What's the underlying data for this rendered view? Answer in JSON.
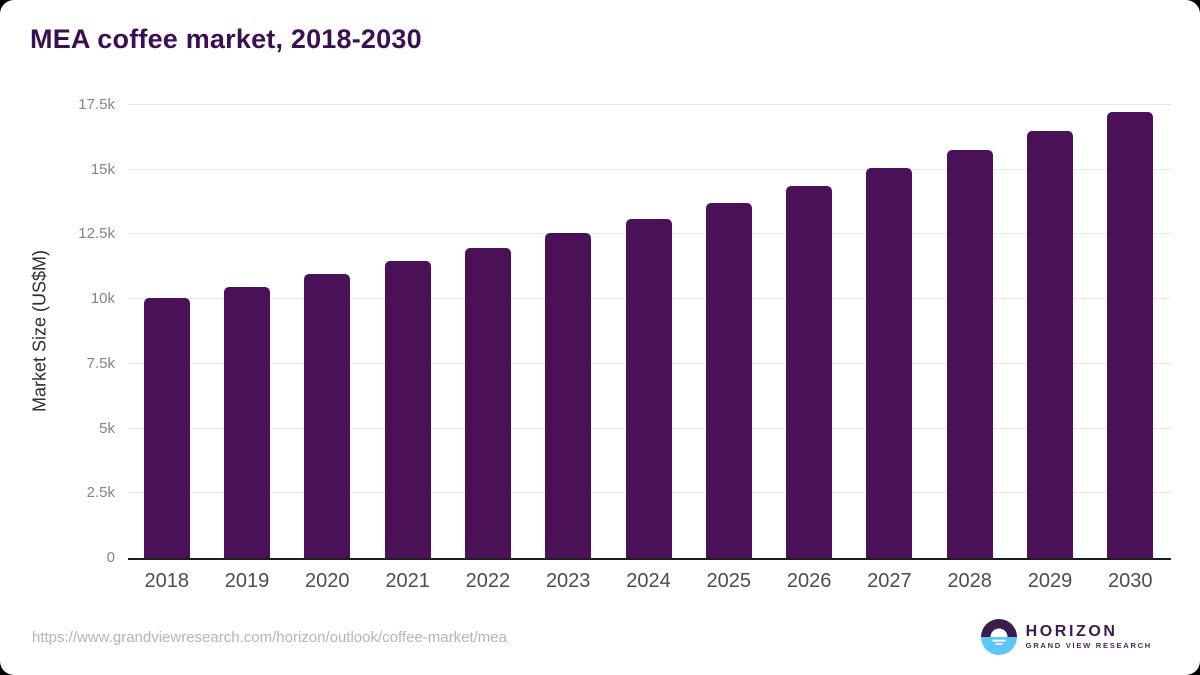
{
  "card": {
    "source_url": "https://www.grandviewresearch.com/horizon/outlook/coffee-market/mea"
  },
  "logo": {
    "wordmark": "HORIZON",
    "subtext": "GRAND VIEW RESEARCH",
    "colors": {
      "purple": "#3a1c4f",
      "blue": "#5ec6f2",
      "wordmark": "#3b1a4e"
    }
  },
  "chart_data": {
    "type": "bar",
    "title": "MEA coffee market, 2018-2030",
    "categories": [
      "2018",
      "2019",
      "2020",
      "2021",
      "2022",
      "2023",
      "2024",
      "2025",
      "2026",
      "2027",
      "2028",
      "2029",
      "2030"
    ],
    "values": [
      10060,
      10480,
      10960,
      11460,
      11970,
      12540,
      13110,
      13730,
      14380,
      15070,
      15760,
      16500,
      17230
    ],
    "xlabel": "",
    "ylabel": "Market Size (US$M)",
    "ylim": [
      0,
      17500
    ],
    "yticks": [
      0,
      2500,
      5000,
      7500,
      10000,
      12500,
      15000,
      17500
    ],
    "ytick_labels": [
      "0",
      "2.5k",
      "5k",
      "7.5k",
      "10k",
      "12.5k",
      "15k",
      "17.5k"
    ],
    "grid": true,
    "legend": "none",
    "bar_color": "#4a1158",
    "title_color": "#3b1053"
  }
}
